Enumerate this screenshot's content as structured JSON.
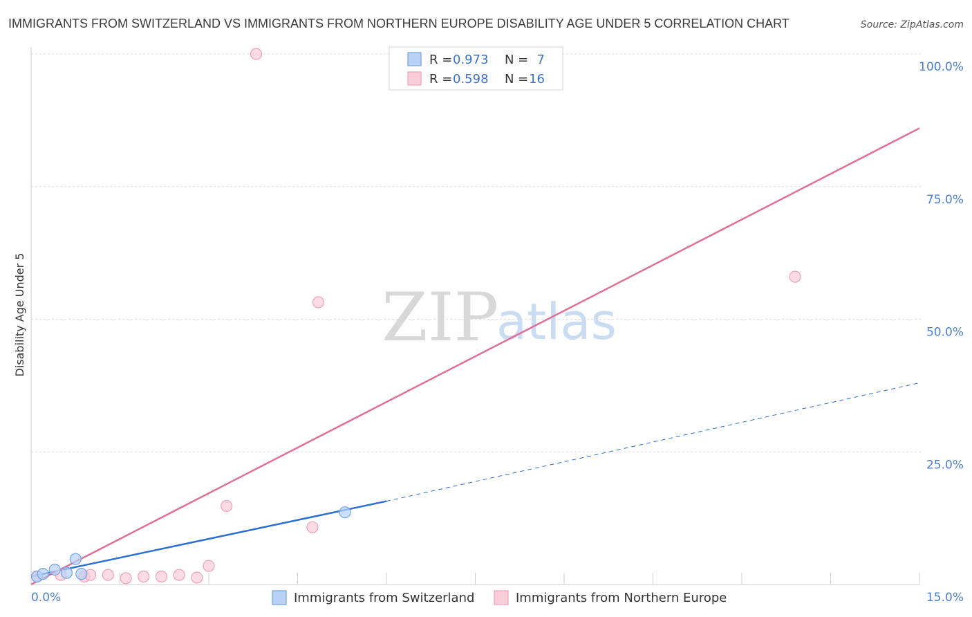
{
  "chart_data": {
    "type": "scatter",
    "title": "IMMIGRANTS FROM SWITZERLAND VS IMMIGRANTS FROM NORTHERN EUROPE DISABILITY AGE UNDER 5 CORRELATION CHART",
    "source": "Source: ZipAtlas.com",
    "xlabel": "",
    "ylabel": "Disability Age Under 5",
    "xlim": [
      0,
      15
    ],
    "ylim": [
      0,
      100
    ],
    "x_tick_labels": [
      "0.0%",
      "15.0%"
    ],
    "y_ticks": [
      {
        "value": 100,
        "label": "100.0%"
      },
      {
        "value": 75,
        "label": "75.0%"
      },
      {
        "value": 50,
        "label": "50.0%"
      },
      {
        "value": 25,
        "label": "25.0%"
      }
    ],
    "watermark": {
      "part1": "ZIP",
      "part2": "atlas"
    },
    "series": [
      {
        "name": "Immigrants from Switzerland",
        "color": "#6fa3e6",
        "fill": "#b8d1f5",
        "line_color": "#2b6fd1",
        "R": "0.973",
        "N": "7",
        "points": [
          {
            "x": 0.1,
            "y": 1.5
          },
          {
            "x": 0.2,
            "y": 2.0
          },
          {
            "x": 0.4,
            "y": 2.8
          },
          {
            "x": 0.6,
            "y": 2.2
          },
          {
            "x": 0.75,
            "y": 4.8
          },
          {
            "x": 0.85,
            "y": 2.0
          },
          {
            "x": 5.3,
            "y": 13.6
          }
        ],
        "trend_solid": [
          [
            0.0,
            1.5
          ],
          [
            6.0,
            15.7
          ]
        ],
        "trend_dashed": [
          [
            6.0,
            15.7
          ],
          [
            15.0,
            38.0
          ]
        ]
      },
      {
        "name": "Immigrants from Northern Europe",
        "color": "#f0a0b8",
        "fill": "#f9ccd9",
        "line_color": "#e07098",
        "R": "0.598",
        "N": "16",
        "points": [
          {
            "x": 0.1,
            "y": 1.5
          },
          {
            "x": 0.5,
            "y": 1.8
          },
          {
            "x": 0.9,
            "y": 1.5
          },
          {
            "x": 1.0,
            "y": 1.8
          },
          {
            "x": 1.3,
            "y": 1.8
          },
          {
            "x": 1.6,
            "y": 1.2
          },
          {
            "x": 1.9,
            "y": 1.5
          },
          {
            "x": 2.2,
            "y": 1.5
          },
          {
            "x": 2.5,
            "y": 1.8
          },
          {
            "x": 2.8,
            "y": 1.3
          },
          {
            "x": 3.0,
            "y": 3.5
          },
          {
            "x": 3.3,
            "y": 14.8
          },
          {
            "x": 3.8,
            "y": 100.0
          },
          {
            "x": 4.75,
            "y": 10.8
          },
          {
            "x": 4.85,
            "y": 53.2
          },
          {
            "x": 12.9,
            "y": 58.0
          }
        ],
        "trend_solid": [
          [
            0.0,
            0.0
          ],
          [
            15.0,
            86.0
          ]
        ]
      }
    ],
    "legend": {
      "r_label": "R =",
      "n_label": "N ="
    }
  }
}
